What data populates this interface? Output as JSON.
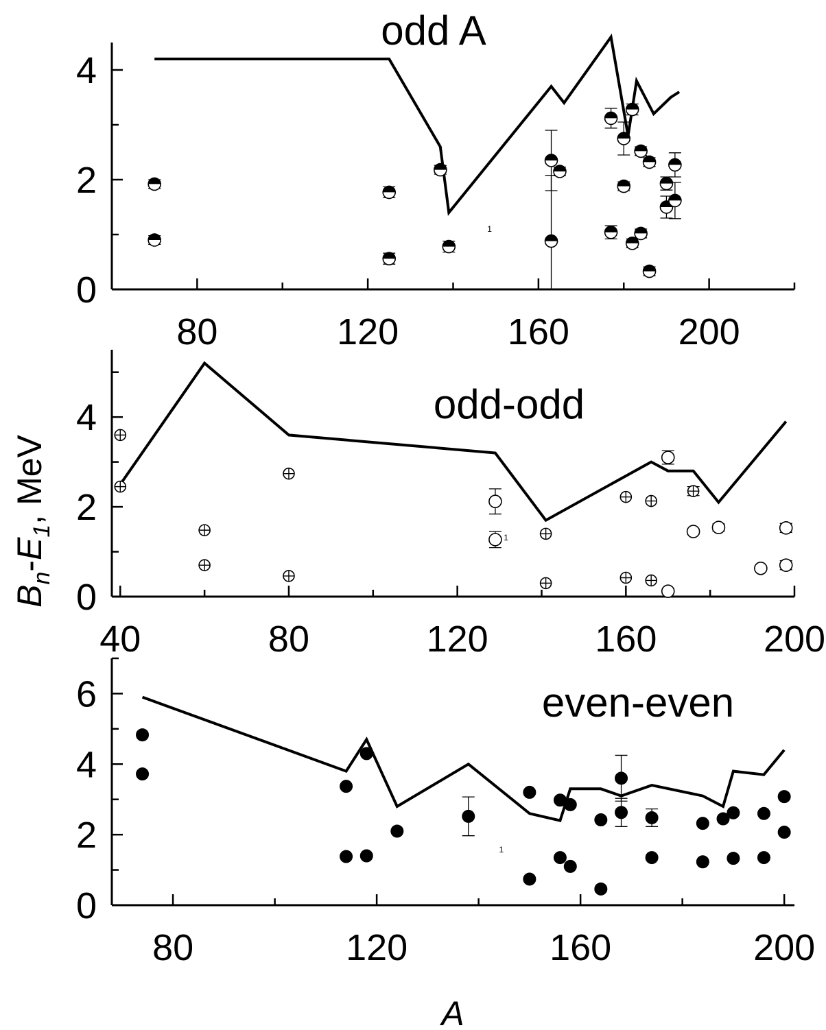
{
  "colors": {
    "line": "#000000",
    "marker": "#000000",
    "background": "#ffffff"
  },
  "ylabel_parts": {
    "B": "B",
    "n": "n",
    "dash": "-",
    "E": "E",
    "one": "1",
    "unit": ", MeV"
  },
  "xlabel": "A",
  "chart_data": [
    {
      "type": "scatter",
      "label": "odd A",
      "xlim": [
        60,
        220
      ],
      "ylim": [
        0,
        4.5
      ],
      "xticks": [
        80,
        120,
        160,
        200
      ],
      "yticks": [
        0,
        2,
        4
      ],
      "marker": "half-filled-top",
      "annotation": "1",
      "annotation_x": 148,
      "annotation_y": 1.05,
      "series": [
        {
          "kind": "line",
          "points": [
            [
              70,
              4.2
            ],
            [
              125,
              4.2
            ],
            [
              137,
              2.6
            ],
            [
              139,
              1.4
            ],
            [
              163,
              3.7
            ],
            [
              166,
              3.4
            ],
            [
              177,
              4.6
            ],
            [
              181,
              2.8
            ],
            [
              183,
              3.8
            ],
            [
              187,
              3.2
            ],
            [
              191,
              3.5
            ],
            [
              193,
              3.6
            ]
          ]
        },
        {
          "kind": "scatter",
          "points": [
            {
              "x": 70,
              "y": 1.92,
              "err": 0.08
            },
            {
              "x": 70,
              "y": 0.9,
              "err": 0.08
            },
            {
              "x": 125,
              "y": 1.77,
              "err": 0.1
            },
            {
              "x": 125,
              "y": 0.56,
              "err": 0.1
            },
            {
              "x": 137,
              "y": 2.18,
              "err": 0.08
            },
            {
              "x": 139,
              "y": 0.78,
              "err": 0.1
            },
            {
              "x": 163,
              "y": 2.35,
              "err": 0.55
            },
            {
              "x": 163,
              "y": 0.88,
              "err": 1.2
            },
            {
              "x": 165,
              "y": 2.15,
              "err": 0.08
            },
            {
              "x": 177,
              "y": 3.12,
              "err": 0.18
            },
            {
              "x": 177,
              "y": 1.04,
              "err": 0.12
            },
            {
              "x": 180,
              "y": 2.75,
              "err": 0.3
            },
            {
              "x": 180,
              "y": 1.88,
              "err": 0.08
            },
            {
              "x": 182,
              "y": 3.28,
              "err": 0.1
            },
            {
              "x": 182,
              "y": 0.84,
              "err": 0.08
            },
            {
              "x": 184,
              "y": 2.52,
              "err": 0.08
            },
            {
              "x": 184,
              "y": 1.02,
              "err": 0.08
            },
            {
              "x": 186,
              "y": 2.32,
              "err": 0.08
            },
            {
              "x": 186,
              "y": 0.33,
              "err": 0.08
            },
            {
              "x": 190,
              "y": 1.93,
              "err": 0.12
            },
            {
              "x": 190,
              "y": 1.5,
              "err": 0.2
            },
            {
              "x": 192,
              "y": 2.27,
              "err": 0.22
            },
            {
              "x": 192,
              "y": 1.62,
              "err": 0.33
            }
          ]
        }
      ]
    },
    {
      "type": "scatter",
      "label": "odd-odd",
      "xlim": [
        38,
        200
      ],
      "ylim": [
        0,
        5.5
      ],
      "xticks": [
        40,
        80,
        120,
        160,
        200
      ],
      "yticks": [
        0,
        2,
        4
      ],
      "marker": "open-cross",
      "annotation": "1",
      "annotation_x": 131,
      "annotation_y": 1.25,
      "series": [
        {
          "kind": "line",
          "points": [
            [
              40,
              2.5
            ],
            [
              60,
              5.2
            ],
            [
              80,
              3.6
            ],
            [
              129,
              3.2
            ],
            [
              141,
              1.7
            ],
            [
              166,
              3.0
            ],
            [
              170,
              2.8
            ],
            [
              176,
              2.8
            ],
            [
              182,
              2.1
            ],
            [
              198,
              3.9
            ]
          ]
        },
        {
          "kind": "scatter",
          "points": [
            {
              "x": 40,
              "y": 3.6,
              "err": 0
            },
            {
              "x": 40,
              "y": 2.45,
              "err": 0
            },
            {
              "x": 60,
              "y": 1.48,
              "err": 0
            },
            {
              "x": 60,
              "y": 0.7,
              "err": 0
            },
            {
              "x": 80,
              "y": 2.74,
              "err": 0
            },
            {
              "x": 80,
              "y": 0.46,
              "err": 0
            },
            {
              "x": 129,
              "y": 2.12,
              "err": 0.28,
              "open": true
            },
            {
              "x": 129,
              "y": 1.27,
              "err": 0.18,
              "open": true
            },
            {
              "x": 141,
              "y": 1.4,
              "err": 0
            },
            {
              "x": 141,
              "y": 0.3,
              "err": 0
            },
            {
              "x": 160,
              "y": 2.22,
              "err": 0
            },
            {
              "x": 160,
              "y": 0.42,
              "err": 0
            },
            {
              "x": 166,
              "y": 2.13,
              "err": 0
            },
            {
              "x": 166,
              "y": 0.36,
              "err": 0
            },
            {
              "x": 170,
              "y": 3.1,
              "err": 0.15,
              "open": true
            },
            {
              "x": 170,
              "y": 0.12,
              "err": 0.05,
              "open": true
            },
            {
              "x": 176,
              "y": 2.35,
              "err": 0.1
            },
            {
              "x": 176,
              "y": 1.45,
              "err": 0.06,
              "open": true
            },
            {
              "x": 182,
              "y": 1.54,
              "err": 0.08,
              "open": true
            },
            {
              "x": 192,
              "y": 0.63,
              "err": 0.05,
              "open": true
            },
            {
              "x": 198,
              "y": 1.53,
              "err": 0.1,
              "open": true
            },
            {
              "x": 198,
              "y": 0.7,
              "err": 0.1,
              "open": true
            }
          ]
        }
      ]
    },
    {
      "type": "scatter",
      "label": "even-even",
      "xlim": [
        68,
        202
      ],
      "ylim": [
        0,
        7
      ],
      "xticks": [
        80,
        120,
        160,
        200
      ],
      "yticks": [
        0,
        2,
        4,
        6
      ],
      "marker": "filled-circle",
      "annotation": "1",
      "annotation_x": 144,
      "annotation_y": 1.5,
      "series": [
        {
          "kind": "line",
          "points": [
            [
              74,
              5.9
            ],
            [
              114,
              3.8
            ],
            [
              118,
              4.7
            ],
            [
              124,
              2.8
            ],
            [
              138,
              4.0
            ],
            [
              150,
              2.6
            ],
            [
              156,
              2.4
            ],
            [
              158,
              3.3
            ],
            [
              164,
              3.3
            ],
            [
              168,
              3.1
            ],
            [
              174,
              3.4
            ],
            [
              184,
              3.1
            ],
            [
              188,
              2.8
            ],
            [
              190,
              3.8
            ],
            [
              196,
              3.7
            ],
            [
              200,
              4.4
            ]
          ]
        },
        {
          "kind": "scatter",
          "points": [
            {
              "x": 74,
              "y": 4.83,
              "err": 0
            },
            {
              "x": 74,
              "y": 3.72,
              "err": 0
            },
            {
              "x": 114,
              "y": 3.37,
              "err": 0
            },
            {
              "x": 114,
              "y": 1.38,
              "err": 0
            },
            {
              "x": 118,
              "y": 4.3,
              "err": 0
            },
            {
              "x": 118,
              "y": 1.4,
              "err": 0
            },
            {
              "x": 124,
              "y": 2.1,
              "err": 0
            },
            {
              "x": 138,
              "y": 2.52,
              "err": 0.55
            },
            {
              "x": 150,
              "y": 3.2,
              "err": 0
            },
            {
              "x": 150,
              "y": 0.74,
              "err": 0
            },
            {
              "x": 156,
              "y": 2.98,
              "err": 0
            },
            {
              "x": 156,
              "y": 1.35,
              "err": 0
            },
            {
              "x": 158,
              "y": 2.85,
              "err": 0
            },
            {
              "x": 158,
              "y": 1.1,
              "err": 0
            },
            {
              "x": 164,
              "y": 2.42,
              "err": 0
            },
            {
              "x": 164,
              "y": 0.46,
              "err": 0
            },
            {
              "x": 168,
              "y": 3.6,
              "err": 0.65
            },
            {
              "x": 168,
              "y": 2.63,
              "err": 0.4
            },
            {
              "x": 174,
              "y": 2.48,
              "err": 0.25
            },
            {
              "x": 174,
              "y": 1.35,
              "err": 0
            },
            {
              "x": 184,
              "y": 2.32,
              "err": 0
            },
            {
              "x": 184,
              "y": 1.23,
              "err": 0
            },
            {
              "x": 188,
              "y": 2.45,
              "err": 0
            },
            {
              "x": 190,
              "y": 2.62,
              "err": 0
            },
            {
              "x": 190,
              "y": 1.33,
              "err": 0
            },
            {
              "x": 196,
              "y": 2.6,
              "err": 0
            },
            {
              "x": 196,
              "y": 1.35,
              "err": 0
            },
            {
              "x": 200,
              "y": 3.08,
              "err": 0
            },
            {
              "x": 200,
              "y": 2.07,
              "err": 0
            }
          ]
        }
      ]
    }
  ]
}
